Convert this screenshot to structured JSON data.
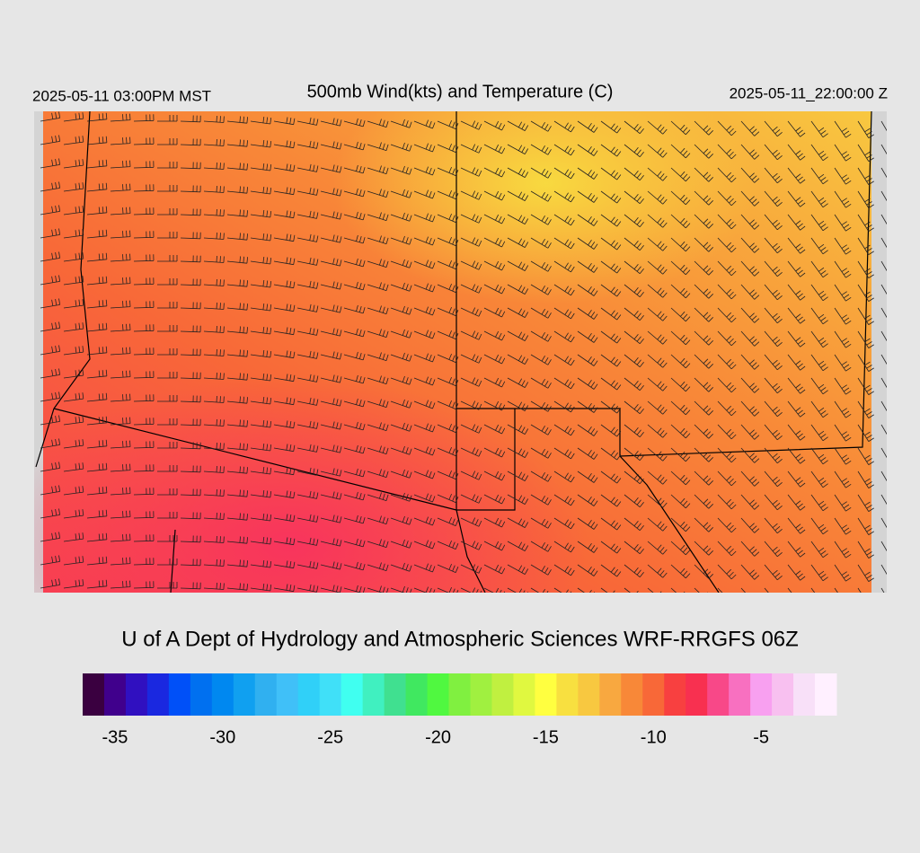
{
  "header": {
    "valid_local": "2025-05-11 03:00PM MST",
    "title": "500mb Wind(kts) and Temperature (C)",
    "valid_utc": "2025-05-11_22:00:00 Z"
  },
  "footer": {
    "credit": "U of A Dept of Hydrology and Atmospheric Sciences WRF-RRGFS 06Z"
  },
  "colorbar": {
    "lim": [
      -36,
      -1
    ],
    "ticks": [
      -35,
      -30,
      -25,
      -20,
      -15,
      -10,
      -5
    ],
    "colors": [
      "#3a0040",
      "#40008c",
      "#3010c0",
      "#1a28e0",
      "#0050f8",
      "#0070f0",
      "#0088f0",
      "#10a0f0",
      "#30b0f0",
      "#40c0f8",
      "#30d0f8",
      "#40e0f8",
      "#40fff0",
      "#40f0c0",
      "#40e090",
      "#40e860",
      "#50f840",
      "#80f040",
      "#a0f040",
      "#c0f040",
      "#e0f840",
      "#ffff40",
      "#f8e040",
      "#f8c840",
      "#f8a840",
      "#f88838",
      "#f86838",
      "#f84040",
      "#f83050",
      "#f84888",
      "#f870c0",
      "#f8a0f0",
      "#f8c0f0",
      "#f8e0f8",
      "#fff0ff"
    ]
  }
}
